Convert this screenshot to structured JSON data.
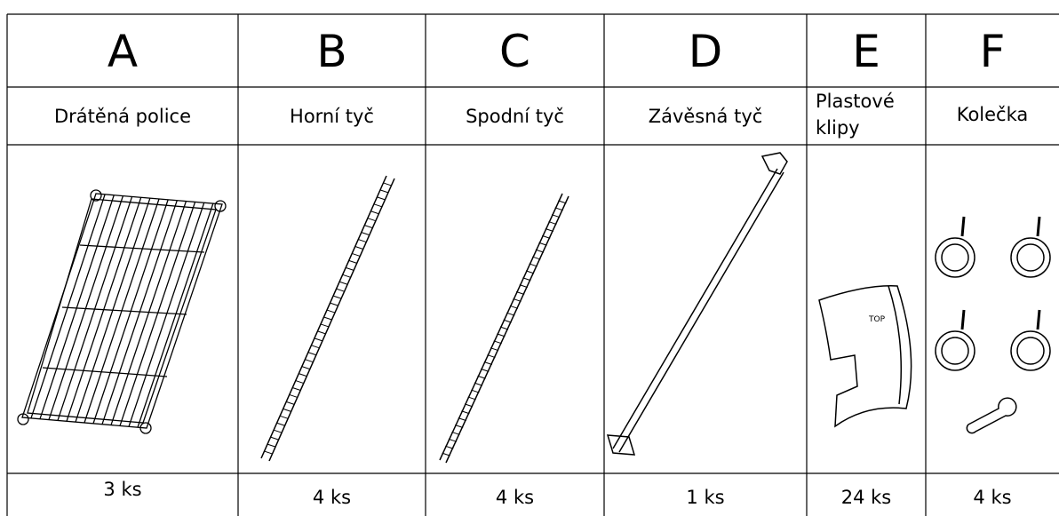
{
  "columns": [
    {
      "letter": "A",
      "name": "Drátěná police",
      "quantity": "3 ks"
    },
    {
      "letter": "B",
      "name": "Horní tyč",
      "quantity": "4 ks"
    },
    {
      "letter": "C",
      "name": "Spodní tyč",
      "quantity": "4 ks"
    },
    {
      "letter": "D",
      "name": "Závěsná tyč",
      "quantity": "1 ks"
    },
    {
      "letter": "E",
      "name": "Plastové klipy",
      "quantity": "24 ks"
    },
    {
      "letter": "F",
      "name": "Kolečka",
      "quantity": "4 ks"
    }
  ]
}
